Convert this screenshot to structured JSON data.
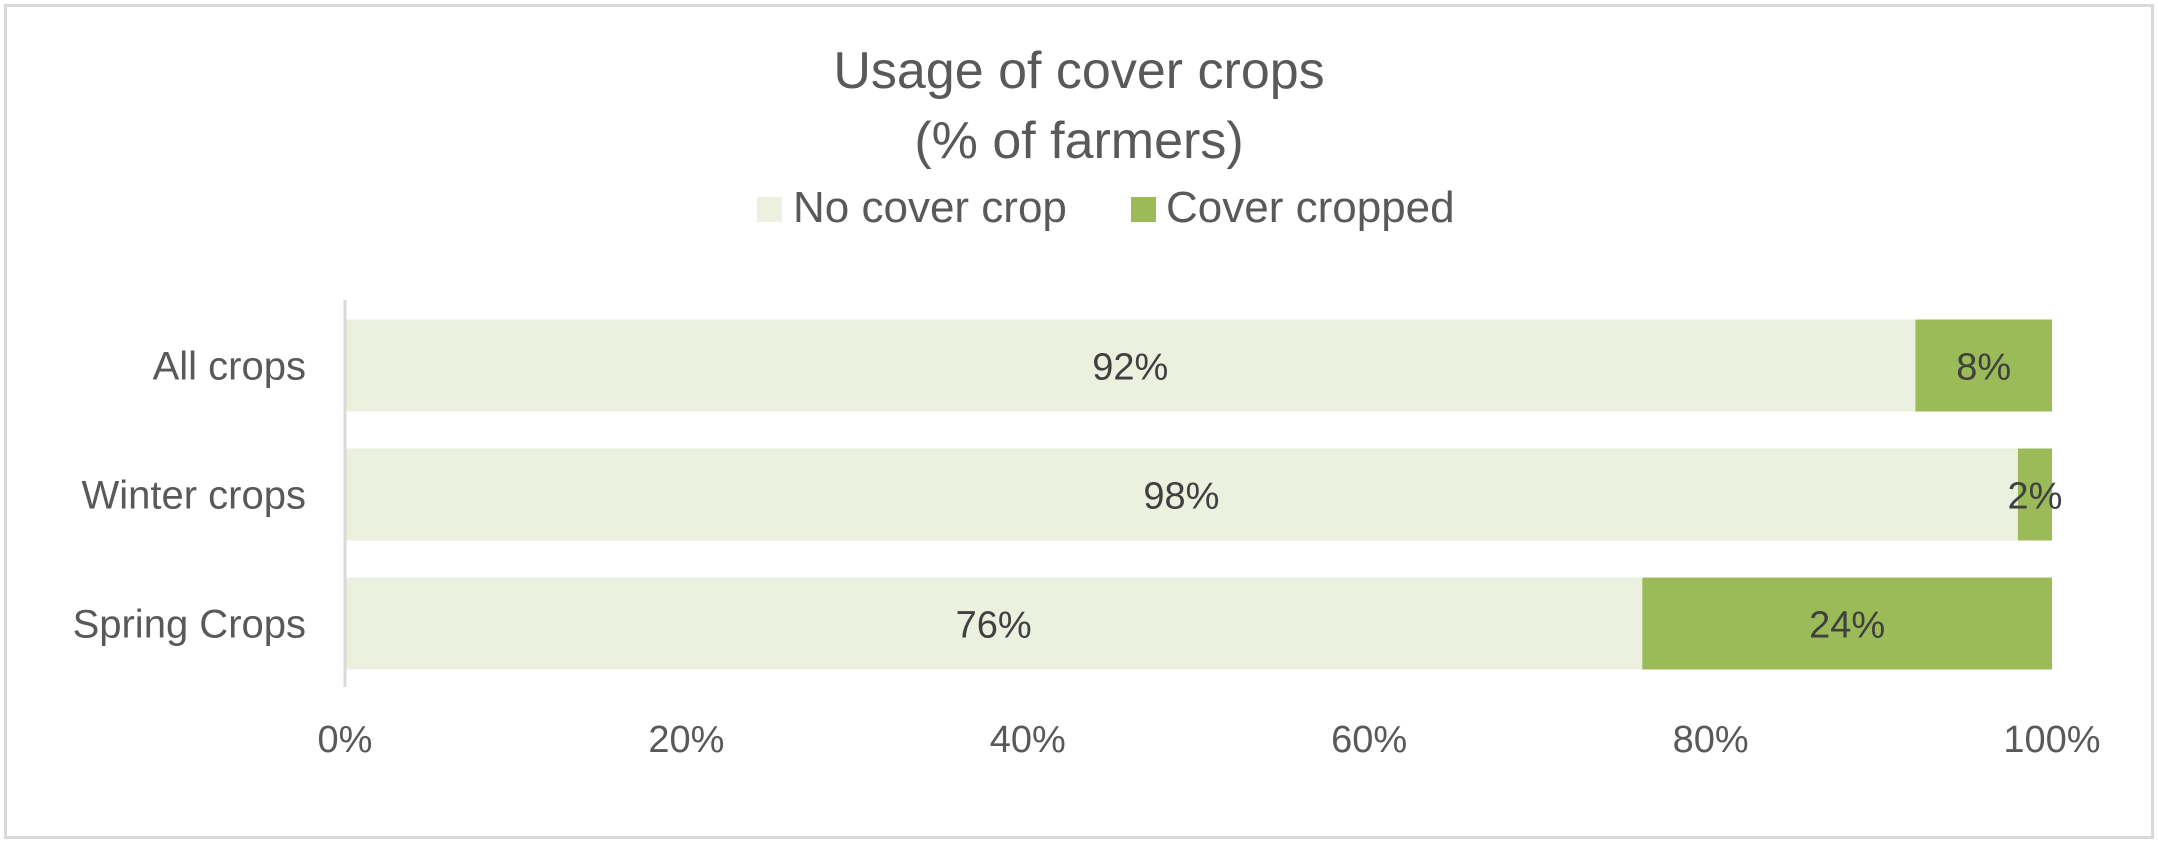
{
  "chart_data": {
    "type": "bar",
    "orientation": "horizontal",
    "stacked": "percent",
    "title": "Usage of cover crops",
    "subtitle": "(% of farmers)",
    "categories": [
      "All crops",
      "Winter crops",
      "Spring Crops"
    ],
    "series": [
      {
        "name": "No cover crop",
        "values": [
          92,
          98,
          76
        ],
        "color": "#ebf1de",
        "labels": [
          "92%",
          "98%",
          "76%"
        ]
      },
      {
        "name": "Cover cropped",
        "values": [
          8,
          2,
          24
        ],
        "color": "#9bbb59",
        "labels": [
          "8%",
          "2%",
          "24%"
        ]
      }
    ],
    "xlim": [
      0,
      100
    ],
    "xticks": [
      0,
      20,
      40,
      60,
      80,
      100
    ],
    "xtick_labels": [
      "0%",
      "20%",
      "40%",
      "60%",
      "80%",
      "100%"
    ],
    "xlabel": "",
    "ylabel": "",
    "grid": false,
    "legend_position": "top"
  }
}
